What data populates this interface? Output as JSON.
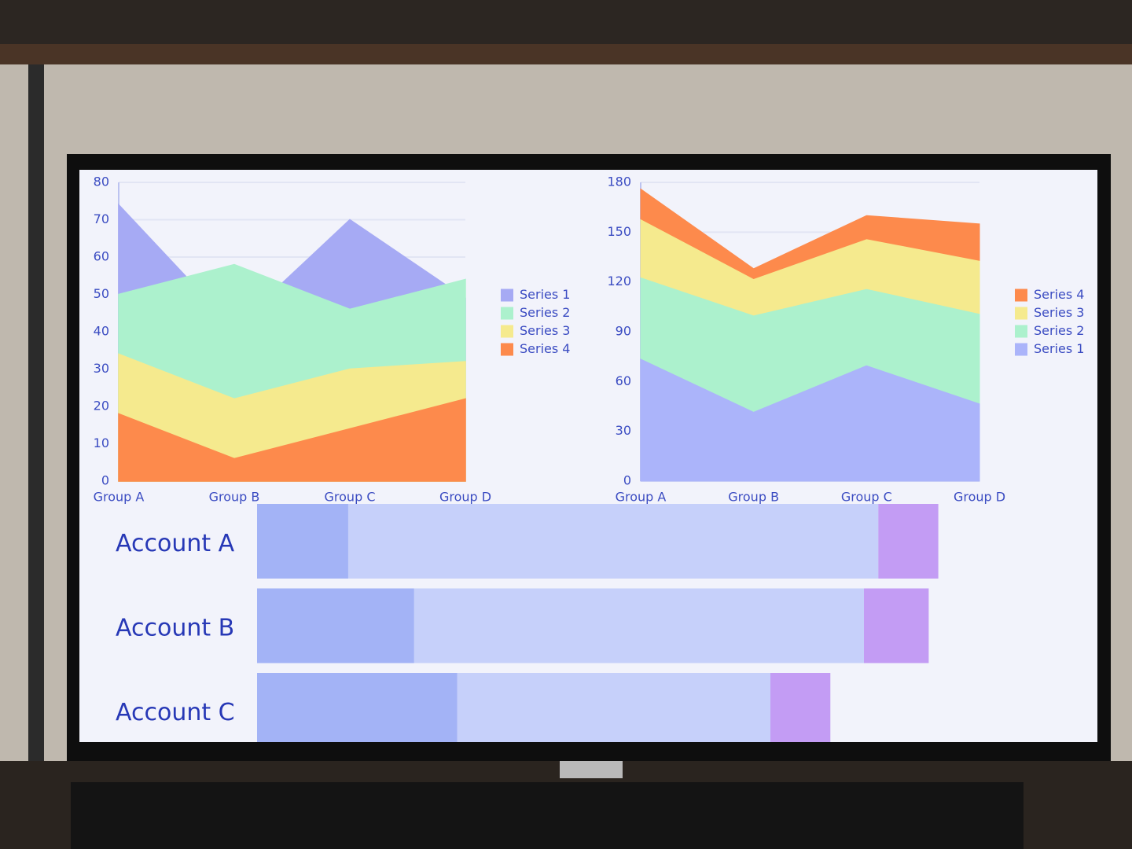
{
  "chart_data": [
    {
      "type": "area",
      "categories": [
        "Group A",
        "Group B",
        "Group C",
        "Group D"
      ],
      "series": [
        {
          "name": "Series 1",
          "color": "#a6aaf4",
          "values": [
            74,
            41,
            70,
            49
          ]
        },
        {
          "name": "Series 2",
          "color": "#acf1cd",
          "values": [
            50,
            58,
            46,
            54
          ]
        },
        {
          "name": "Series 3",
          "color": "#f5ea8e",
          "values": [
            34,
            22,
            30,
            32
          ]
        },
        {
          "name": "Series 4",
          "color": "#fd8a4c",
          "values": [
            18,
            6,
            14,
            22
          ]
        }
      ],
      "ylim": [
        0,
        80
      ],
      "yticks": [
        0,
        10,
        20,
        30,
        40,
        50,
        60,
        70,
        80
      ],
      "grid": true,
      "legend": "right",
      "legend_reversed": false
    },
    {
      "type": "stacked_area",
      "categories": [
        "Group A",
        "Group B",
        "Group C",
        "Group D"
      ],
      "series": [
        {
          "name": "Series 1",
          "color": "#abb4fa",
          "values": [
            74,
            42,
            70,
            47
          ]
        },
        {
          "name": "Series 2",
          "color": "#acf1cd",
          "values": [
            49,
            58,
            46,
            54
          ]
        },
        {
          "name": "Series 3",
          "color": "#f5ea8e",
          "values": [
            35,
            22,
            30,
            32
          ]
        },
        {
          "name": "Series 4",
          "color": "#fd8a4c",
          "values": [
            18,
            6,
            14,
            22
          ]
        }
      ],
      "ylim": [
        0,
        180
      ],
      "yticks": [
        0,
        30,
        60,
        90,
        120,
        150,
        180
      ],
      "grid": true,
      "legend": "right",
      "legend_reversed": true
    },
    {
      "type": "stacked_bar_h",
      "categories": [
        "Account A",
        "Account B",
        "Account C"
      ],
      "series": [
        {
          "color": "#a3b3f6",
          "values": [
            76,
            131,
            167
          ]
        },
        {
          "color": "#c6d0fa",
          "values": [
            442,
            375,
            261
          ]
        },
        {
          "color": "#c39cf4",
          "values": [
            50,
            54,
            50
          ]
        }
      ],
      "xlim": [
        0,
        700
      ]
    }
  ]
}
